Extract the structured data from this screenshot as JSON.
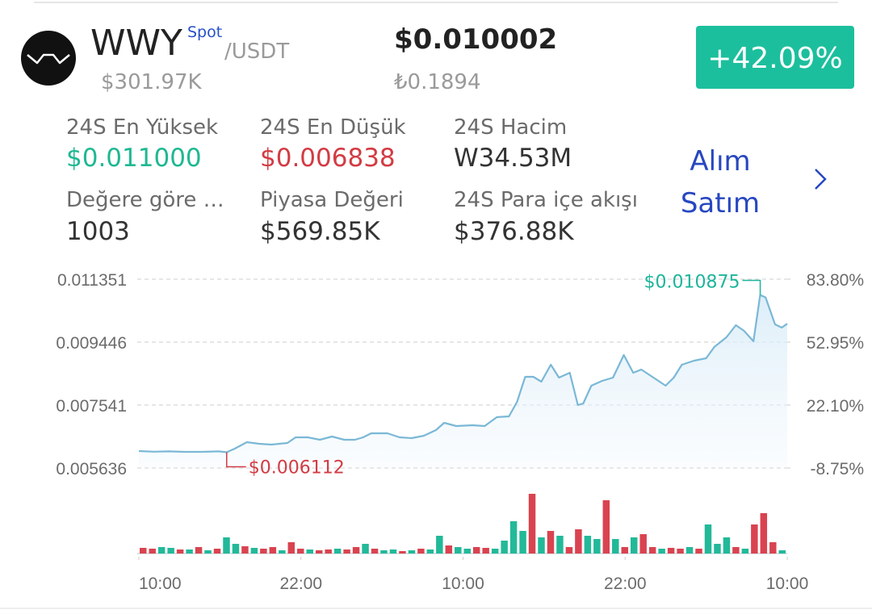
{
  "header": {
    "symbol": "WWY",
    "badge": "Spot",
    "quote": "/USDT",
    "volume": "$301.97K",
    "price": "$0.010002",
    "price_local": "₺0.1894",
    "change": "+42.09%"
  },
  "stats": [
    {
      "label": "24S En Yüksek",
      "value": "$0.011000"
    },
    {
      "label": "24S En Düşük",
      "value": "$0.006838"
    },
    {
      "label": "24S Hacim",
      "value": "W34.53M"
    },
    {
      "label": "Değere göre …",
      "value": "1003"
    },
    {
      "label": "Piyasa Değeri",
      "value": "$569.85K"
    },
    {
      "label": "24S Para içe akışı",
      "value": "$376.88K"
    }
  ],
  "trade_link": [
    "Alım",
    "Satım"
  ],
  "chart_data": [
    {
      "type": "line",
      "color": "#7ab8d6",
      "x": [
        0,
        1.1,
        2.2,
        3.4,
        4.6,
        5.9,
        6.5,
        7.1,
        8.0,
        8.9,
        9.8,
        11.0,
        11.6,
        12.5,
        13.4,
        14.3,
        15.2,
        16.0,
        16.6,
        17.2,
        18.4,
        19.3,
        20.2,
        21.1,
        22.0,
        22.6,
        23.5,
        24.7,
        25.6,
        26.5,
        27.4,
        28.0,
        28.6,
        29.2,
        29.8,
        30.5,
        31.1,
        31.9,
        32.5,
        32.9,
        33.5,
        34.3,
        35.1,
        35.9,
        36.6,
        37.2,
        38.1,
        39.0,
        39.6,
        40.2,
        41.1,
        42.0,
        42.6,
        43.5,
        44.2,
        44.8,
        45.5,
        46.0,
        46.4,
        47.1,
        47.6,
        48.0
      ],
      "values": [
        0.00615,
        0.00613,
        0.00614,
        0.006125,
        0.006125,
        0.00614,
        0.006112,
        0.006222,
        0.006417,
        0.006369,
        0.006344,
        0.006393,
        0.006564,
        0.006564,
        0.006491,
        0.006588,
        0.006491,
        0.006491,
        0.006564,
        0.006686,
        0.006686,
        0.006564,
        0.00654,
        0.006613,
        0.006784,
        0.007004,
        0.006906,
        0.00693,
        0.006906,
        0.007174,
        0.007199,
        0.007638,
        0.008395,
        0.008395,
        0.008249,
        0.008762,
        0.008371,
        0.008518,
        0.007541,
        0.00759,
        0.008127,
        0.008273,
        0.008371,
        0.009055,
        0.008518,
        0.008615,
        0.008371,
        0.008127,
        0.008371,
        0.008762,
        0.008884,
        0.008957,
        0.009299,
        0.009592,
        0.009958,
        0.009787,
        0.00947,
        0.010875,
        0.0108,
        0.009983,
        0.009885,
        0.010002
      ],
      "xlim": [
        0,
        48
      ],
      "xticks": [
        {
          "value": 0,
          "label": "10:00"
        },
        {
          "value": 12,
          "label": "22:00"
        },
        {
          "value": 24,
          "label": "10:00"
        },
        {
          "value": 36,
          "label": "22:00"
        },
        {
          "value": 48,
          "label": "10:00"
        }
      ],
      "ylim": [
        0.005636,
        0.011351
      ],
      "yticks": [
        0.011351,
        0.009446,
        0.007541,
        0.005636
      ],
      "y2lim": [
        -8.75,
        83.8
      ],
      "y2ticks": [
        {
          "value": 83.8,
          "label": "83.80%"
        },
        {
          "value": 52.95,
          "label": "52.95%"
        },
        {
          "value": 22.1,
          "label": "22.10%"
        },
        {
          "value": -8.75,
          "label": "-8.75%"
        }
      ],
      "grid": true,
      "annotations": [
        {
          "text": "$0.010875",
          "x": 46.0,
          "y": 0.010875,
          "color": "#1db59c",
          "side": "left"
        },
        {
          "text": "$0.006112",
          "x": 6.5,
          "y": 0.006112,
          "color": "#d33b43",
          "side": "right"
        }
      ]
    },
    {
      "type": "bar",
      "values": [
        7,
        6,
        8,
        7,
        5,
        5,
        8,
        4,
        6,
        20,
        12,
        9,
        7,
        6,
        8,
        4,
        14,
        6,
        5,
        4,
        5,
        6,
        5,
        8,
        12,
        6,
        4,
        5,
        3,
        4,
        6,
        5,
        22,
        10,
        8,
        6,
        8,
        7,
        6,
        16,
        40,
        28,
        74,
        20,
        28,
        22,
        8,
        30,
        22,
        18,
        66,
        18,
        8,
        20,
        24,
        8,
        6,
        7,
        6,
        8,
        6,
        36,
        12,
        20,
        8,
        6,
        36,
        50,
        14,
        4
      ],
      "colors": [
        "#d94350",
        "#d94350",
        "#22b999",
        "#22b999",
        "#d94350",
        "#22b999",
        "#d94350",
        "#22b999",
        "#d94350",
        "#22b999",
        "#22b999",
        "#d94350",
        "#22b999",
        "#d94350",
        "#d94350",
        "#22b999",
        "#d94350",
        "#d94350",
        "#22b999",
        "#d94350",
        "#d94350",
        "#22b999",
        "#d94350",
        "#d94350",
        "#22b999",
        "#d94350",
        "#22b999",
        "#22b999",
        "#d94350",
        "#22b999",
        "#d94350",
        "#22b999",
        "#22b999",
        "#d94350",
        "#22b999",
        "#22b999",
        "#d94350",
        "#d94350",
        "#22b999",
        "#22b999",
        "#22b999",
        "#22b999",
        "#d94350",
        "#22b999",
        "#d94350",
        "#22b999",
        "#d94350",
        "#d94350",
        "#22b999",
        "#22b999",
        "#d94350",
        "#22b999",
        "#d94350",
        "#22b999",
        "#d94350",
        "#d94350",
        "#22b999",
        "#d94350",
        "#d94350",
        "#22b999",
        "#d94350",
        "#22b999",
        "#22b999",
        "#22b999",
        "#d94350",
        "#22b999",
        "#d94350",
        "#d94350",
        "#d94350",
        "#22b999"
      ]
    }
  ]
}
